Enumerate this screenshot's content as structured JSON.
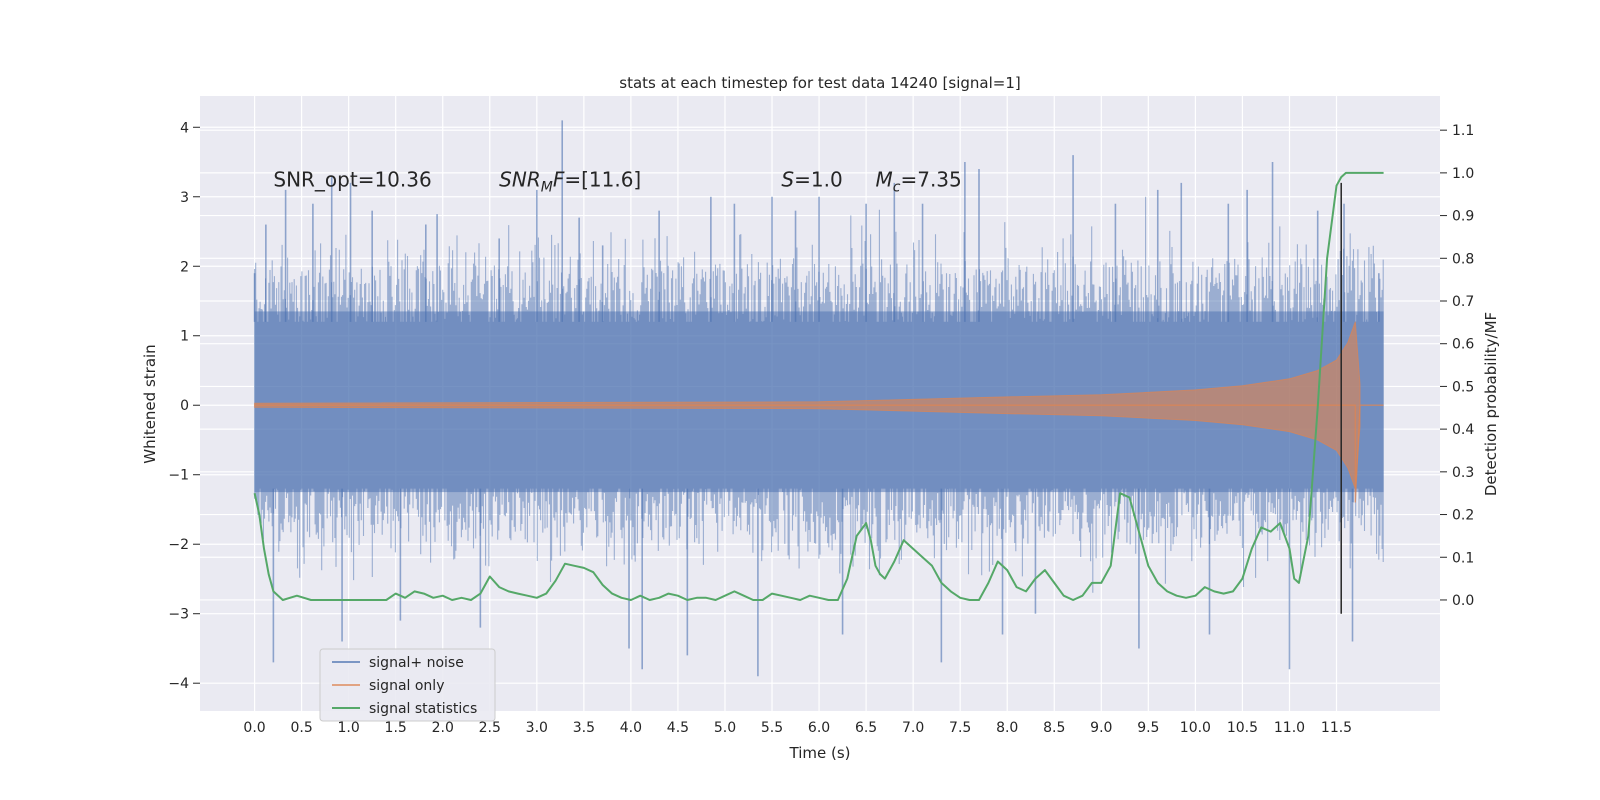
{
  "chart_data": {
    "type": "line",
    "title": "stats at each timestep for test data 14240 [signal=1]",
    "xlabel": "Time (s)",
    "ylabel": "Whitened strain",
    "y2label": "Detection probability/MF",
    "xlim": [
      -0.58,
      12.6
    ],
    "ylim": [
      -4.4,
      4.45
    ],
    "y2lim": [
      -0.26,
      1.18
    ],
    "xticks": [
      0.0,
      0.5,
      1.0,
      1.5,
      2.0,
      2.5,
      3.0,
      3.5,
      4.0,
      4.5,
      5.0,
      5.5,
      6.0,
      6.5,
      7.0,
      7.5,
      8.0,
      8.5,
      9.0,
      9.5,
      10.0,
      10.5,
      11.0,
      11.5
    ],
    "xtick_labels": [
      "0.0",
      "0.5",
      "1.0",
      "1.5",
      "2.0",
      "2.5",
      "3.0",
      "3.5",
      "4.0",
      "4.5",
      "5.0",
      "5.5",
      "6.0",
      "6.5",
      "7.0",
      "7.5",
      "8.0",
      "8.5",
      "9.0",
      "9.5",
      "10.0",
      "10.5",
      "11.0",
      "11.5"
    ],
    "yticks": [
      -4,
      -3,
      -2,
      -1,
      0,
      1,
      2,
      3,
      4
    ],
    "ytick_labels": [
      "−4",
      "−3",
      "−2",
      "−1",
      "0",
      "1",
      "2",
      "3",
      "4"
    ],
    "y2ticks": [
      0.0,
      0.1,
      0.2,
      0.3,
      0.4,
      0.5,
      0.6,
      0.7,
      0.8,
      0.9,
      1.0,
      1.1
    ],
    "y2tick_labels": [
      "0.0",
      "0.1",
      "0.2",
      "0.3",
      "0.4",
      "0.5",
      "0.6",
      "0.7",
      "0.8",
      "0.9",
      "1.0",
      "1.1"
    ],
    "grid": true,
    "legend": "bottom-left",
    "annotations": [
      {
        "kind": "plain",
        "text": "SNR_opt=10.36",
        "x": 0.2,
        "y": 3.25
      },
      {
        "kind": "snr_mf",
        "base": "SNR",
        "sub": "M",
        "rest": "F=[11.6]",
        "x": 2.6,
        "y": 3.25
      },
      {
        "kind": "italic_lead",
        "lead": "S",
        "rest": "=1.0",
        "x": 5.6,
        "y": 3.25
      },
      {
        "kind": "mc",
        "base": "M",
        "sub": "c",
        "rest": "=7.35",
        "x": 6.6,
        "y": 3.25
      }
    ],
    "series": [
      {
        "name": "signal+ noise",
        "color": "#4c72b0",
        "kind": "noise_band",
        "x_range": [
          0.0,
          12.0
        ],
        "envelope_lower": -2.2,
        "envelope_upper": 2.2,
        "spikes": [
          {
            "x": 0.0,
            "y": 1.9
          },
          {
            "x": 0.12,
            "y": 2.6
          },
          {
            "x": 0.2,
            "y": -3.7
          },
          {
            "x": 0.33,
            "y": 3.1
          },
          {
            "x": 0.62,
            "y": 2.9
          },
          {
            "x": 0.82,
            "y": 3.3
          },
          {
            "x": 1.02,
            "y": 3.2
          },
          {
            "x": 0.93,
            "y": -3.4
          },
          {
            "x": 1.25,
            "y": 2.8
          },
          {
            "x": 1.55,
            "y": -3.1
          },
          {
            "x": 1.82,
            "y": 2.6
          },
          {
            "x": 1.94,
            "y": 2.75
          },
          {
            "x": 2.4,
            "y": -3.2
          },
          {
            "x": 2.6,
            "y": 2.4
          },
          {
            "x": 3.0,
            "y": 3.1
          },
          {
            "x": 3.27,
            "y": 4.1
          },
          {
            "x": 3.45,
            "y": 2.7
          },
          {
            "x": 3.7,
            "y": 2.3
          },
          {
            "x": 3.98,
            "y": -3.5
          },
          {
            "x": 4.12,
            "y": -3.8
          },
          {
            "x": 4.3,
            "y": 2.8
          },
          {
            "x": 4.6,
            "y": -3.6
          },
          {
            "x": 4.85,
            "y": 3.0
          },
          {
            "x": 5.1,
            "y": 2.9
          },
          {
            "x": 5.35,
            "y": -3.9
          },
          {
            "x": 5.5,
            "y": 3.0
          },
          {
            "x": 5.75,
            "y": 2.8
          },
          {
            "x": 6.0,
            "y": 3.0
          },
          {
            "x": 6.25,
            "y": -3.3
          },
          {
            "x": 6.5,
            "y": 2.9
          },
          {
            "x": 6.8,
            "y": 3.2
          },
          {
            "x": 7.1,
            "y": 2.9
          },
          {
            "x": 7.3,
            "y": -3.7
          },
          {
            "x": 7.55,
            "y": 3.5
          },
          {
            "x": 7.7,
            "y": 3.4
          },
          {
            "x": 7.95,
            "y": -3.3
          },
          {
            "x": 8.3,
            "y": -3.0
          },
          {
            "x": 8.7,
            "y": 3.6
          },
          {
            "x": 9.15,
            "y": 2.9
          },
          {
            "x": 9.4,
            "y": -3.5
          },
          {
            "x": 9.6,
            "y": 3.1
          },
          {
            "x": 9.85,
            "y": 3.2
          },
          {
            "x": 10.15,
            "y": -3.3
          },
          {
            "x": 10.35,
            "y": 2.9
          },
          {
            "x": 10.55,
            "y": 3.1
          },
          {
            "x": 10.82,
            "y": 3.5
          },
          {
            "x": 11.0,
            "y": -3.8
          },
          {
            "x": 11.3,
            "y": 2.8
          },
          {
            "x": 11.58,
            "y": 2.9
          },
          {
            "x": 11.67,
            "y": -3.4
          },
          {
            "x": 11.95,
            "y": 1.9
          }
        ]
      },
      {
        "name": "signal only",
        "color": "#dd8452",
        "kind": "chirp",
        "x_range": [
          0.0,
          11.75
        ],
        "envelope": [
          [
            0.0,
            0.03
          ],
          [
            6.0,
            0.05
          ],
          [
            8.0,
            0.12
          ],
          [
            9.0,
            0.15
          ],
          [
            10.0,
            0.22
          ],
          [
            10.5,
            0.28
          ],
          [
            11.0,
            0.38
          ],
          [
            11.3,
            0.5
          ],
          [
            11.5,
            0.65
          ],
          [
            11.62,
            0.9
          ],
          [
            11.7,
            1.2
          ],
          [
            11.75,
            0.3
          ]
        ],
        "tail": [
          [
            11.7,
            -1.4
          ],
          [
            11.75,
            0.0
          ],
          [
            12.0,
            0.0
          ]
        ]
      },
      {
        "name": "signal statistics",
        "color": "#55a868",
        "kind": "line",
        "axis": "y2",
        "x": [
          0.0,
          0.05,
          0.1,
          0.15,
          0.2,
          0.3,
          0.45,
          0.6,
          0.8,
          1.0,
          1.2,
          1.4,
          1.5,
          1.6,
          1.7,
          1.8,
          1.9,
          2.0,
          2.1,
          2.2,
          2.3,
          2.4,
          2.5,
          2.6,
          2.7,
          2.8,
          2.9,
          3.0,
          3.1,
          3.2,
          3.3,
          3.4,
          3.5,
          3.6,
          3.7,
          3.8,
          3.9,
          4.0,
          4.1,
          4.2,
          4.3,
          4.4,
          4.5,
          4.6,
          4.7,
          4.8,
          4.9,
          5.0,
          5.1,
          5.2,
          5.3,
          5.4,
          5.5,
          5.6,
          5.7,
          5.8,
          5.9,
          6.0,
          6.1,
          6.2,
          6.3,
          6.4,
          6.5,
          6.55,
          6.6,
          6.65,
          6.7,
          6.8,
          6.9,
          7.0,
          7.1,
          7.2,
          7.3,
          7.4,
          7.5,
          7.6,
          7.7,
          7.8,
          7.9,
          8.0,
          8.1,
          8.2,
          8.3,
          8.4,
          8.5,
          8.6,
          8.7,
          8.8,
          8.9,
          9.0,
          9.1,
          9.2,
          9.3,
          9.4,
          9.5,
          9.6,
          9.7,
          9.8,
          9.9,
          10.0,
          10.1,
          10.2,
          10.3,
          10.4,
          10.5,
          10.6,
          10.7,
          10.8,
          10.9,
          11.0,
          11.05,
          11.1,
          11.2,
          11.3,
          11.4,
          11.5,
          11.55,
          11.6,
          11.7,
          11.8,
          11.9,
          12.0
        ],
        "y": [
          0.25,
          0.2,
          0.12,
          0.06,
          0.02,
          0.0,
          0.01,
          0.0,
          0.0,
          0.0,
          0.0,
          0.0,
          0.015,
          0.005,
          0.02,
          0.015,
          0.005,
          0.01,
          0.0,
          0.005,
          0.0,
          0.015,
          0.055,
          0.03,
          0.02,
          0.015,
          0.01,
          0.005,
          0.015,
          0.045,
          0.085,
          0.08,
          0.075,
          0.065,
          0.035,
          0.015,
          0.005,
          0.0,
          0.01,
          0.0,
          0.005,
          0.015,
          0.01,
          0.0,
          0.005,
          0.005,
          0.0,
          0.01,
          0.02,
          0.01,
          0.0,
          0.0,
          0.015,
          0.01,
          0.005,
          0.0,
          0.01,
          0.005,
          0.0,
          0.0,
          0.05,
          0.15,
          0.18,
          0.14,
          0.08,
          0.06,
          0.05,
          0.09,
          0.14,
          0.12,
          0.1,
          0.08,
          0.04,
          0.02,
          0.005,
          0.0,
          0.0,
          0.04,
          0.09,
          0.07,
          0.03,
          0.02,
          0.05,
          0.07,
          0.04,
          0.01,
          0.0,
          0.01,
          0.04,
          0.04,
          0.08,
          0.25,
          0.24,
          0.16,
          0.08,
          0.04,
          0.02,
          0.01,
          0.005,
          0.01,
          0.03,
          0.02,
          0.015,
          0.02,
          0.05,
          0.12,
          0.17,
          0.16,
          0.18,
          0.12,
          0.05,
          0.04,
          0.15,
          0.45,
          0.8,
          0.97,
          0.99,
          1.0,
          1.0,
          1.0,
          1.0,
          1.0
        ],
        "x_end": 11.6
      }
    ],
    "vline": {
      "x": 11.55,
      "y_from": -3.0,
      "y_to": 3.2,
      "color": "#262626"
    },
    "legend_entries": [
      {
        "name": "signal+ noise",
        "color": "#4c72b0"
      },
      {
        "name": "signal only",
        "color": "#dd8452"
      },
      {
        "name": "signal statistics",
        "color": "#55a868"
      }
    ]
  }
}
